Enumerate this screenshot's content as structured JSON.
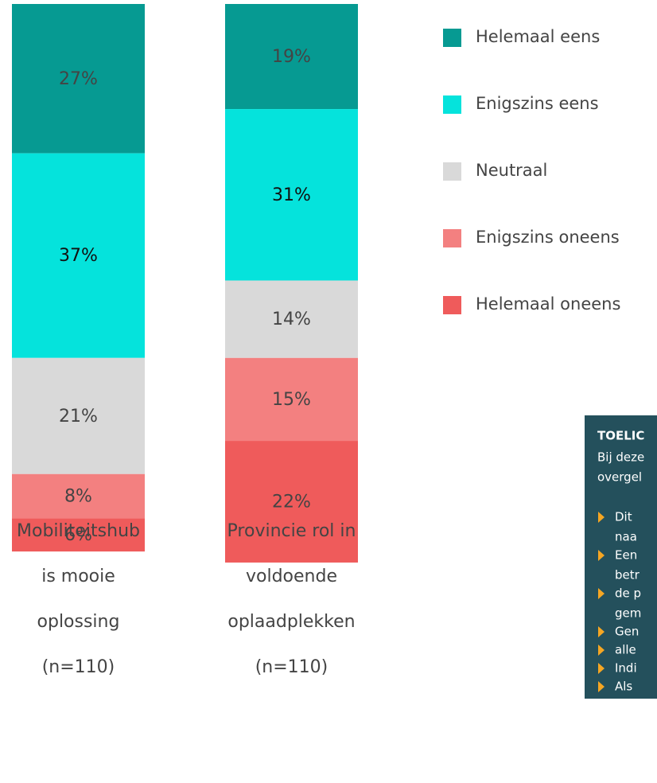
{
  "chart_data": {
    "type": "stacked-bar",
    "categories": [
      [
        "Mobiliteitshub",
        "is mooie",
        "oplossing",
        "(n=110)"
      ],
      [
        "Provincie rol in",
        "voldoende",
        "oplaadplekken",
        "(n=110)"
      ]
    ],
    "ylim": [
      0,
      100
    ],
    "legend": "right",
    "series": [
      {
        "name": "Helemaal eens",
        "color": "#069a92",
        "values": [
          27,
          19
        ],
        "value_labels": [
          "27%",
          "19%"
        ]
      },
      {
        "name": "Enigszins eens",
        "color": "#05e3dc",
        "values": [
          37,
          31
        ],
        "value_labels": [
          "37%",
          "31%"
        ]
      },
      {
        "name": "Neutraal",
        "color": "#d9d9d9",
        "values": [
          21,
          14
        ],
        "value_labels": [
          "21%",
          "14%"
        ]
      },
      {
        "name": "Enigszins oneens",
        "color": "#f38080",
        "values": [
          8,
          15
        ],
        "value_labels": [
          "8%",
          "15%"
        ]
      },
      {
        "name": "Helemaal oneens",
        "color": "#ef5b5b",
        "values": [
          6,
          22
        ],
        "value_labels": [
          "6%",
          "22%"
        ]
      }
    ],
    "note": {
      "title": "TOELIC",
      "lines": [
        "Bij deze",
        "overgel"
      ],
      "bullets": [
        [
          "Dit",
          "naa"
        ],
        [
          "Een",
          "betr"
        ],
        [
          "de p",
          "gem"
        ],
        [
          "Gen"
        ],
        [
          "alle"
        ],
        [
          "Indi"
        ],
        [
          "Als"
        ]
      ]
    }
  }
}
